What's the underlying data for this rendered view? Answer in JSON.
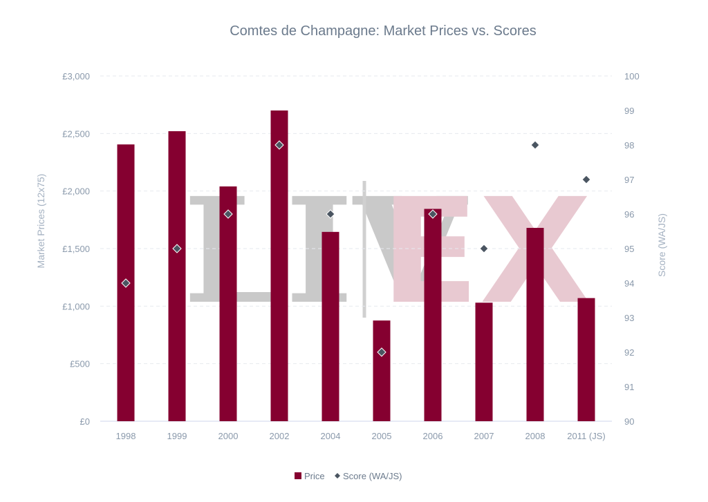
{
  "chart_data": {
    "type": "bar",
    "title": "Comtes de Champagne: Market Prices vs. Scores",
    "categories": [
      "1998",
      "1999",
      "2000",
      "2002",
      "2004",
      "2005",
      "2006",
      "2007",
      "2008",
      "2011 (JS)"
    ],
    "series": [
      {
        "name": "Price",
        "type": "bar",
        "axis": "left",
        "color": "#850030",
        "values": [
          2405,
          2520,
          2040,
          2700,
          1645,
          875,
          1845,
          1030,
          1680,
          1070
        ]
      },
      {
        "name": "Score (WA/JS)",
        "type": "scatter",
        "marker": "diamond",
        "axis": "right",
        "color": "#4a5561",
        "values": [
          94,
          95,
          96,
          98,
          96,
          92,
          96,
          95,
          98,
          97
        ]
      }
    ],
    "ylabel": "Market Prices (12x75)",
    "ylabel_right": "Score (WA/JS)",
    "ylim": [
      0,
      3000
    ],
    "ylim_right": [
      90,
      100
    ],
    "yticks": [
      "£0",
      "£500",
      "£1,000",
      "£1,500",
      "£2,000",
      "£2,500",
      "£3,000"
    ],
    "yticks_right": [
      "90",
      "91",
      "92",
      "93",
      "94",
      "95",
      "96",
      "97",
      "98",
      "99",
      "100"
    ],
    "grid": true,
    "legend_position": "bottom-center"
  },
  "watermark": {
    "left": "LIV",
    "right": "EX"
  }
}
